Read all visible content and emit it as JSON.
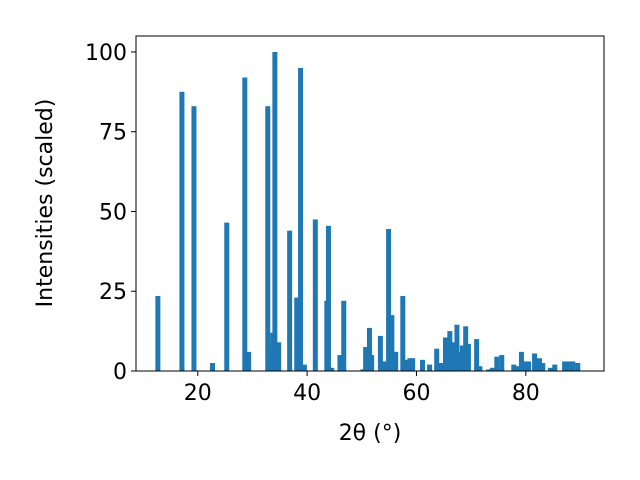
{
  "chart_data": {
    "type": "bar",
    "xlabel": "2θ (°)",
    "ylabel": "Intensities (scaled)",
    "color": "#1f77b4",
    "xlim": [
      8.7,
      94.3
    ],
    "xticks": [
      20,
      40,
      60,
      80
    ],
    "ylim": [
      0,
      105
    ],
    "yticks": [
      0,
      25,
      50,
      75,
      100
    ],
    "x": [
      12.7,
      17.1,
      19.3,
      22.7,
      25.3,
      28.6,
      29.3,
      32.8,
      33.3,
      33.7,
      34.1,
      34.8,
      36.8,
      38.1,
      38.8,
      39.5,
      41.5,
      43.6,
      43.9,
      44.5,
      46.0,
      46.7,
      50.2,
      50.7,
      51.4,
      51.8,
      53.4,
      54.2,
      54.9,
      55.5,
      56.2,
      57.5,
      58.0,
      58.8,
      59.3,
      61.1,
      62.4,
      63.7,
      64.4,
      65.3,
      66.1,
      66.6,
      67.4,
      67.9,
      68.4,
      69.0,
      69.5,
      71.0,
      71.6,
      73.2,
      73.9,
      74.7,
      75.6,
      77.8,
      78.3,
      79.2,
      79.8,
      80.5,
      81.6,
      82.5,
      83.1,
      84.5,
      85.3,
      87.1,
      87.8,
      88.6,
      89.5
    ],
    "values": [
      23.5,
      87.5,
      83,
      2.5,
      46.5,
      92,
      6,
      83,
      7.5,
      12,
      100,
      9,
      44,
      23,
      95,
      2,
      47.5,
      22,
      45.5,
      1,
      5,
      22,
      0.5,
      7.5,
      13.5,
      5,
      11,
      3,
      44.5,
      17.5,
      6,
      23.5,
      3.5,
      4,
      4,
      3.5,
      2,
      7,
      2.5,
      10.5,
      12.5,
      9,
      14.5,
      6,
      8,
      14,
      8.5,
      10,
      1.5,
      0.5,
      1,
      4.5,
      5,
      2,
      1.5,
      6,
      3,
      3,
      5.5,
      4,
      2.5,
      1,
      2,
      3,
      3,
      3,
      2.5
    ]
  }
}
